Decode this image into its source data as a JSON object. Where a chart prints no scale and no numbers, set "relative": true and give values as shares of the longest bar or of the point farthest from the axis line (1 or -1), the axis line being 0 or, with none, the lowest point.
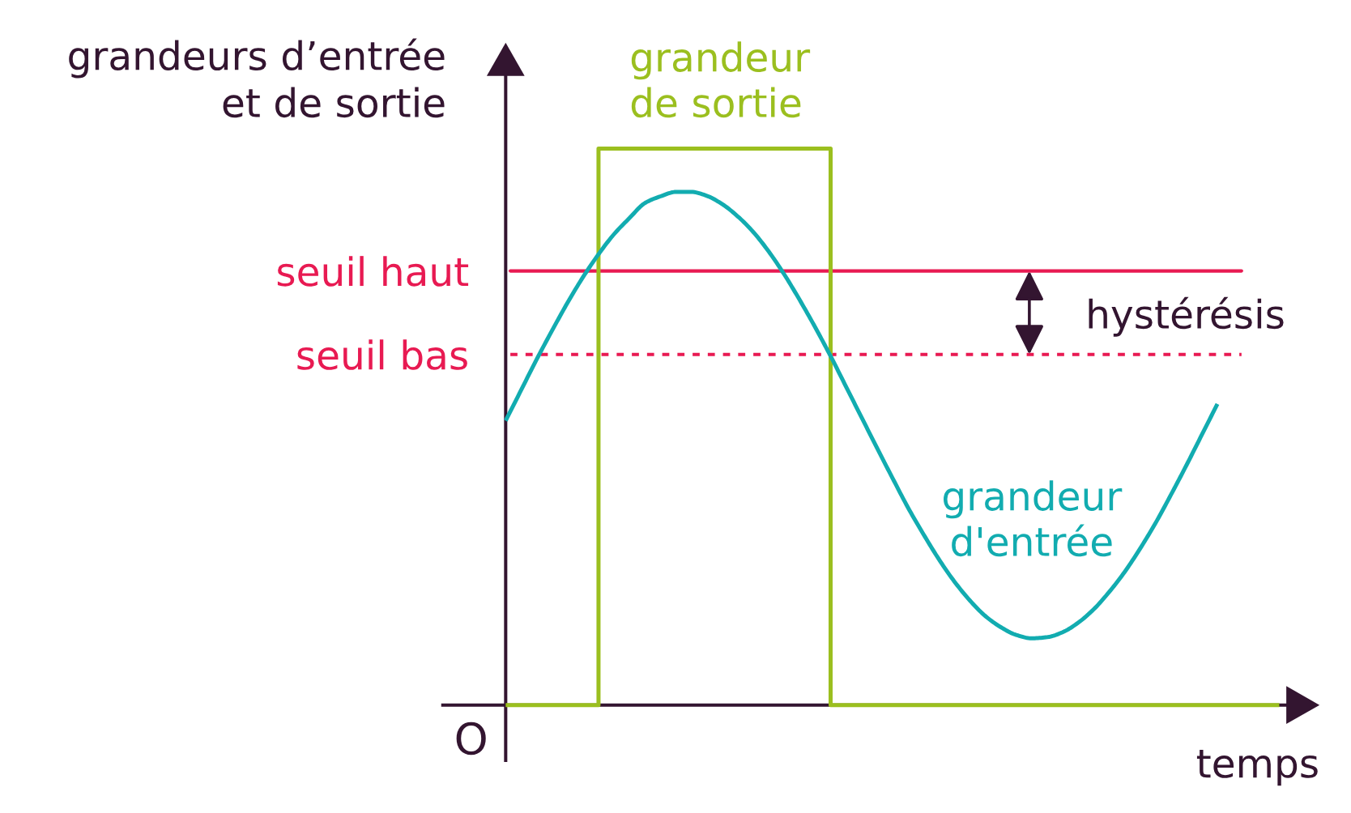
{
  "chart_data": {
    "type": "line",
    "relative": true,
    "xlabel": "temps",
    "ylabel": "grandeurs d’entrée\net de sortie",
    "categories": [
      null,
      null,
      null,
      null,
      null,
      null,
      null,
      null,
      null,
      null,
      null,
      null,
      null,
      null,
      null,
      null,
      null,
      null,
      null,
      null,
      null,
      null,
      null,
      null,
      null,
      null,
      null,
      null,
      null,
      null,
      null,
      null,
      null,
      null,
      null,
      null,
      null,
      null,
      null,
      null,
      null,
      null,
      null,
      null,
      null,
      null,
      null,
      null,
      null,
      null,
      null
    ],
    "series": [
      {
        "name": "grandeur\nde sortie",
        "type": "step",
        "color": "#9bbf1f",
        "values": [
          0,
          0,
          0,
          0,
          0,
          0,
          1,
          1,
          1,
          1,
          1,
          1,
          1,
          1,
          1,
          1,
          1,
          1,
          1,
          1,
          1,
          0,
          0,
          0,
          0,
          0,
          0,
          0,
          0,
          0,
          0,
          0,
          0,
          0,
          0,
          0,
          0,
          0,
          0,
          0,
          0,
          0,
          0,
          0,
          0,
          0,
          0,
          0,
          0,
          0,
          0
        ]
      },
      {
        "name": "grandeur\nd'entrée",
        "color": "#12acb0",
        "values": [
          0.511,
          0.566,
          0.621,
          0.673,
          0.723,
          0.769,
          0.81,
          0.846,
          0.875,
          0.902,
          0.914,
          0.922,
          0.922,
          0.915,
          0.9,
          0.878,
          0.85,
          0.815,
          0.774,
          0.728,
          0.679,
          0.627,
          0.572,
          0.517,
          0.462,
          0.408,
          0.355,
          0.307,
          0.262,
          0.222,
          0.188,
          0.16,
          0.14,
          0.126,
          0.12,
          0.122,
          0.131,
          0.148,
          0.172,
          0.203,
          0.239,
          0.281,
          0.327,
          0.378,
          0.431,
          0.486,
          0.541,
          null,
          null,
          null,
          null
        ]
      }
    ],
    "ref_lines": [
      {
        "axis": "y",
        "value": 0.78,
        "label": "seuil haut",
        "color": "#e81a52",
        "line_style": "solid"
      },
      {
        "axis": "y",
        "value": 0.63,
        "label": "seuil bas",
        "color": "#e81a52",
        "line_style": "dashed"
      }
    ],
    "annotations": [
      "hystérésis",
      "O"
    ]
  }
}
